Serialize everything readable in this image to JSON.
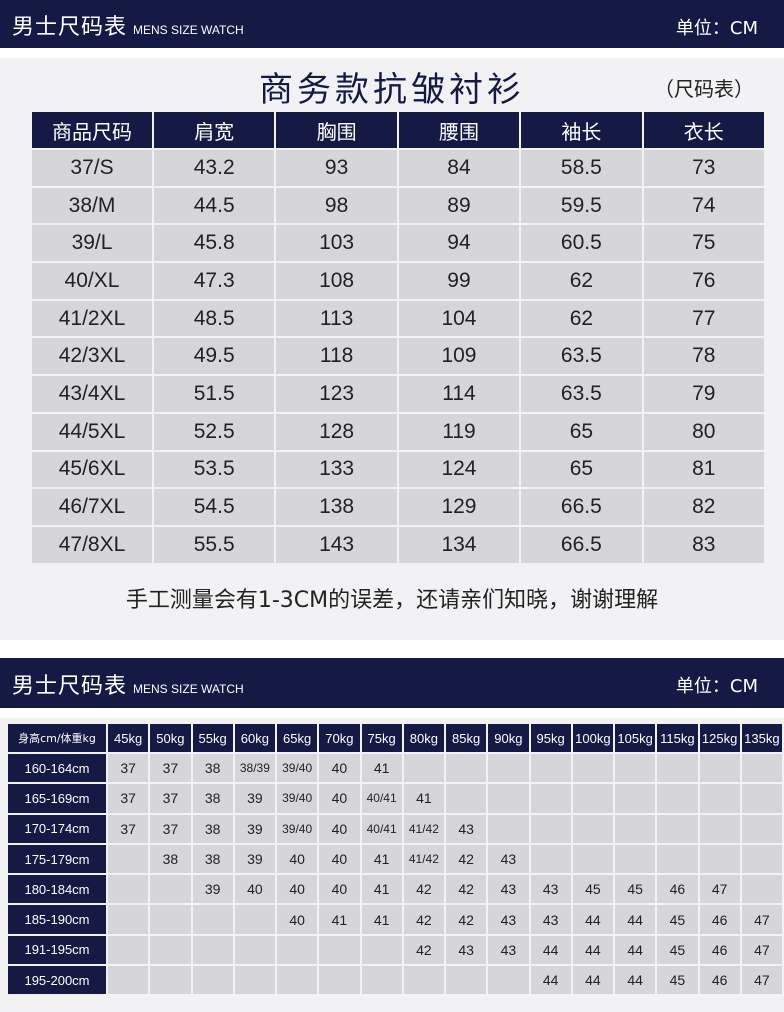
{
  "section1": {
    "header_title": "男士尺码表",
    "header_subtitle": "MENS SIZE WATCH",
    "unit_label": "单位：CM",
    "product_title": "商务款抗皱衬衫",
    "title_note": "（尺码表）",
    "columns": [
      "商品尺码",
      "肩宽",
      "胸围",
      "腰围",
      "袖长",
      "衣长"
    ],
    "rows": [
      [
        "37/S",
        "43.2",
        "93",
        "84",
        "58.5",
        "73"
      ],
      [
        "38/M",
        "44.5",
        "98",
        "89",
        "59.5",
        "74"
      ],
      [
        "39/L",
        "45.8",
        "103",
        "94",
        "60.5",
        "75"
      ],
      [
        "40/XL",
        "47.3",
        "108",
        "99",
        "62",
        "76"
      ],
      [
        "41/2XL",
        "48.5",
        "113",
        "104",
        "62",
        "77"
      ],
      [
        "42/3XL",
        "49.5",
        "118",
        "109",
        "63.5",
        "78"
      ],
      [
        "43/4XL",
        "51.5",
        "123",
        "114",
        "63.5",
        "79"
      ],
      [
        "44/5XL",
        "52.5",
        "128",
        "119",
        "65",
        "80"
      ],
      [
        "45/6XL",
        "53.5",
        "133",
        "124",
        "65",
        "81"
      ],
      [
        "46/7XL",
        "54.5",
        "138",
        "129",
        "66.5",
        "82"
      ],
      [
        "47/8XL",
        "55.5",
        "143",
        "134",
        "66.5",
        "83"
      ]
    ],
    "note": "手工测量会有1-3CM的误差，还请亲们知晓，谢谢理解"
  },
  "section2": {
    "header_title": "男士尺码表",
    "header_subtitle": "MENS SIZE WATCH",
    "unit_label": "单位：CM",
    "corner_label": "身高cm/体重kg",
    "columns": [
      "45kg",
      "50kg",
      "55kg",
      "60kg",
      "65kg",
      "70kg",
      "75kg",
      "80kg",
      "85kg",
      "90kg",
      "95kg",
      "100kg",
      "105kg",
      "115kg",
      "125kg",
      "135kg"
    ],
    "rows": [
      {
        "label": "160-164cm",
        "cells": [
          "37",
          "37",
          "38",
          "38/39",
          "39/40",
          "40",
          "41",
          "",
          "",
          "",
          "",
          "",
          "",
          "",
          "",
          ""
        ]
      },
      {
        "label": "165-169cm",
        "cells": [
          "37",
          "37",
          "38",
          "39",
          "39/40",
          "40",
          "40/41",
          "41",
          "",
          "",
          "",
          "",
          "",
          "",
          "",
          ""
        ]
      },
      {
        "label": "170-174cm",
        "cells": [
          "37",
          "37",
          "38",
          "39",
          "39/40",
          "40",
          "40/41",
          "41/42",
          "43",
          "",
          "",
          "",
          "",
          "",
          "",
          ""
        ]
      },
      {
        "label": "175-179cm",
        "cells": [
          "",
          "38",
          "38",
          "39",
          "40",
          "40",
          "41",
          "41/42",
          "42",
          "43",
          "",
          "",
          "",
          "",
          "",
          ""
        ]
      },
      {
        "label": "180-184cm",
        "cells": [
          "",
          "",
          "39",
          "40",
          "40",
          "40",
          "41",
          "42",
          "42",
          "43",
          "43",
          "45",
          "45",
          "46",
          "47",
          ""
        ]
      },
      {
        "label": "185-190cm",
        "cells": [
          "",
          "",
          "",
          "",
          "40",
          "41",
          "41",
          "42",
          "42",
          "43",
          "43",
          "44",
          "44",
          "45",
          "46",
          "47"
        ]
      },
      {
        "label": "191-195cm",
        "cells": [
          "",
          "",
          "",
          "",
          "",
          "",
          "",
          "42",
          "43",
          "43",
          "44",
          "44",
          "44",
          "45",
          "46",
          "47"
        ]
      },
      {
        "label": "195-200cm",
        "cells": [
          "",
          "",
          "",
          "",
          "",
          "",
          "",
          "",
          "",
          "",
          "44",
          "44",
          "44",
          "45",
          "46",
          "47"
        ]
      }
    ]
  }
}
